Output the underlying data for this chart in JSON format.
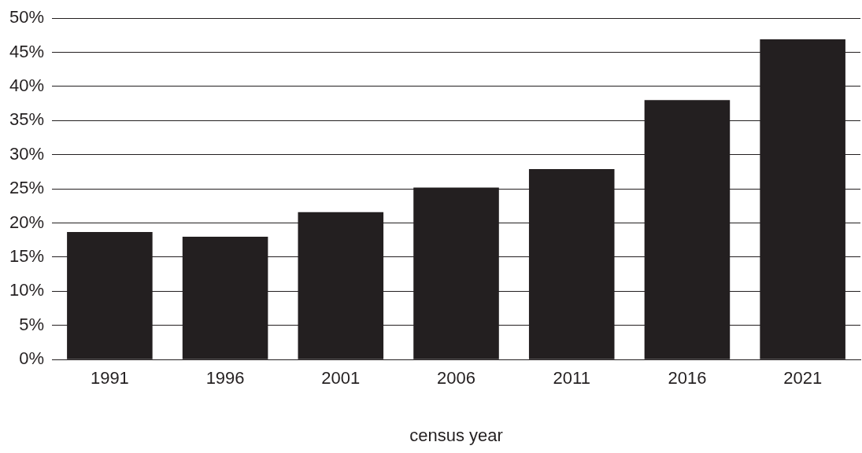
{
  "chart_data": {
    "type": "bar",
    "xlabel": "census year",
    "categories": [
      "1991",
      "1996",
      "2001",
      "2006",
      "2011",
      "2016",
      "2021"
    ],
    "values": [
      18.7,
      18.0,
      21.6,
      25.2,
      27.9,
      38.0,
      46.9
    ],
    "color": "#231f20",
    "ylim": [
      0,
      50
    ],
    "yticks": [
      {
        "value": 0,
        "label": "0%"
      },
      {
        "value": 5,
        "label": "5%"
      },
      {
        "value": 10,
        "label": "10%"
      },
      {
        "value": 15,
        "label": "15%"
      },
      {
        "value": 20,
        "label": "20%"
      },
      {
        "value": 25,
        "label": "25%"
      },
      {
        "value": 30,
        "label": "30%"
      },
      {
        "value": 35,
        "label": "35%"
      },
      {
        "value": 40,
        "label": "40%"
      },
      {
        "value": 45,
        "label": "45%"
      },
      {
        "value": 50,
        "label": "50%"
      }
    ],
    "grid": "y",
    "legend": false
  }
}
